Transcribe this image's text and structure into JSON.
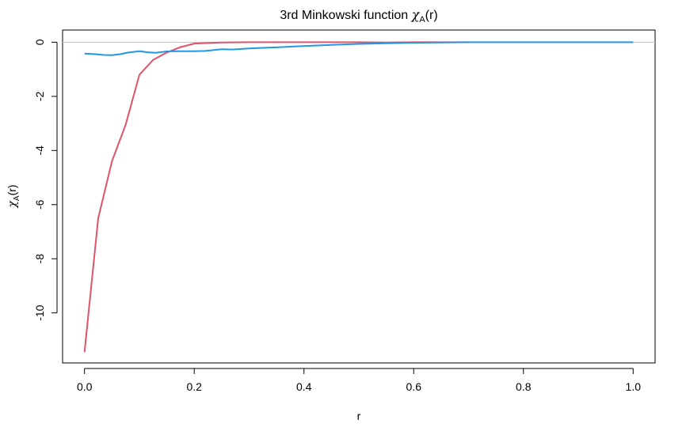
{
  "chart_data": {
    "type": "line",
    "title_main": "3rd Minkowski function ",
    "title_symbol": "χ",
    "title_sub": "A",
    "title_tail": "(r)",
    "xlabel": "r",
    "ylabel_symbol": "χ",
    "ylabel_sub": "A",
    "ylabel_tail": "(r)",
    "xlim": [
      -0.04,
      1.04
    ],
    "ylim": [
      -11.85,
      0.45
    ],
    "xticks": [
      {
        "value": 0.0,
        "label": "0.0"
      },
      {
        "value": 0.2,
        "label": "0.2"
      },
      {
        "value": 0.4,
        "label": "0.4"
      },
      {
        "value": 0.6,
        "label": "0.6"
      },
      {
        "value": 0.8,
        "label": "0.8"
      },
      {
        "value": 1.0,
        "label": "1.0"
      }
    ],
    "yticks": [
      {
        "value": 0,
        "label": "0"
      },
      {
        "value": -2,
        "label": "-2"
      },
      {
        "value": -4,
        "label": "-4"
      },
      {
        "value": -6,
        "label": "-6"
      },
      {
        "value": -8,
        "label": "-8"
      },
      {
        "value": -10,
        "label": "-10"
      }
    ],
    "reference_line": {
      "y": 0,
      "color": "#bebebe"
    },
    "grid": false,
    "series": [
      {
        "color": "#df536b",
        "x": [
          0.0,
          0.025,
          0.05,
          0.075,
          0.1,
          0.125,
          0.15,
          0.175,
          0.2,
          0.225,
          0.25,
          0.3,
          0.4,
          0.5,
          0.55,
          0.6,
          0.7
        ],
        "y": [
          -11.45,
          -6.5,
          -4.4,
          -3.05,
          -1.2,
          -0.65,
          -0.38,
          -0.18,
          -0.05,
          -0.03,
          -0.01,
          0,
          0,
          0,
          -0.01,
          0,
          0
        ]
      },
      {
        "color": "#2297e6",
        "x": [
          0.0,
          0.02,
          0.035,
          0.05,
          0.065,
          0.08,
          0.1,
          0.115,
          0.13,
          0.15,
          0.17,
          0.2,
          0.22,
          0.25,
          0.27,
          0.3,
          0.32,
          0.35,
          0.4,
          0.45,
          0.5,
          0.55,
          0.6,
          0.65,
          0.7,
          0.75,
          0.8,
          0.9,
          1.0
        ],
        "y": [
          -0.42,
          -0.44,
          -0.47,
          -0.48,
          -0.44,
          -0.38,
          -0.33,
          -0.37,
          -0.39,
          -0.34,
          -0.33,
          -0.33,
          -0.32,
          -0.26,
          -0.27,
          -0.23,
          -0.21,
          -0.19,
          -0.14,
          -0.1,
          -0.06,
          -0.04,
          -0.02,
          -0.01,
          0.0,
          0.0,
          0.0,
          0.0,
          0.0
        ]
      }
    ]
  }
}
